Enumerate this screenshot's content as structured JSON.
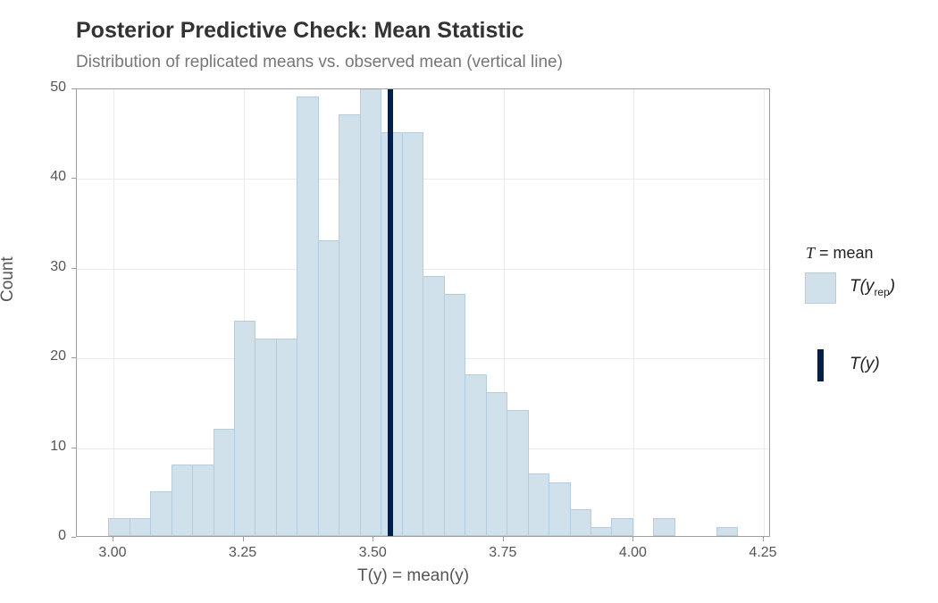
{
  "header": {
    "title": "Posterior Predictive Check: Mean Statistic",
    "subtitle": "Distribution of replicated means vs. observed mean (vertical line)"
  },
  "axes": {
    "x_title": "T(y) = mean(y)",
    "y_title": "Count",
    "x_ticks": [
      "3.00",
      "3.25",
      "3.50",
      "3.75",
      "4.00",
      "4.25"
    ],
    "y_ticks": [
      "0",
      "10",
      "20",
      "30",
      "40",
      "50"
    ]
  },
  "legend": {
    "title_symbol": "T",
    "title_rest": " = mean",
    "rep_label_main": "T(y",
    "rep_label_sub": "rep",
    "rep_label_close": ")",
    "obs_label": "T(y)"
  },
  "colors": {
    "bar_fill": "#d1e1ec",
    "bar_outline": "#b3cde0",
    "observed_line": "#011f4b"
  },
  "chart_data": {
    "type": "bar",
    "title": "Posterior Predictive Check: Mean Statistic",
    "subtitle": "Distribution of replicated means vs. observed mean (vertical line)",
    "xlabel": "T(y) = mean(y)",
    "ylabel": "Count",
    "xlim": [
      2.93,
      4.27
    ],
    "ylim": [
      0,
      50
    ],
    "grid": true,
    "legend_position": "right",
    "bin_width": 0.0403,
    "bin_start": 2.99,
    "categories": [
      "3.010",
      "3.050",
      "3.091",
      "3.131",
      "3.171",
      "3.212",
      "3.252",
      "3.292",
      "3.333",
      "3.373",
      "3.413",
      "3.453",
      "3.494",
      "3.534",
      "3.574",
      "3.615",
      "3.655",
      "3.695",
      "3.736",
      "3.776",
      "3.816",
      "3.856",
      "3.897",
      "3.937",
      "3.977",
      "4.018",
      "4.058",
      "4.098",
      "4.139",
      "4.179"
    ],
    "values": [
      2,
      2,
      5,
      8,
      8,
      12,
      24,
      22,
      22,
      49,
      33,
      47,
      50,
      45,
      45,
      29,
      27,
      18,
      16,
      14,
      7,
      6,
      3,
      1,
      2,
      0,
      2,
      0,
      0,
      1
    ],
    "series": [
      {
        "name": "T(y_rep)",
        "values": [
          2,
          2,
          5,
          8,
          8,
          12,
          24,
          22,
          22,
          49,
          33,
          47,
          50,
          45,
          45,
          29,
          27,
          18,
          16,
          14,
          7,
          6,
          3,
          1,
          2,
          0,
          2,
          0,
          0,
          1
        ]
      }
    ],
    "observed_value": 3.532,
    "legend": [
      "T = mean",
      "T(y_rep)",
      "T(y)"
    ]
  }
}
